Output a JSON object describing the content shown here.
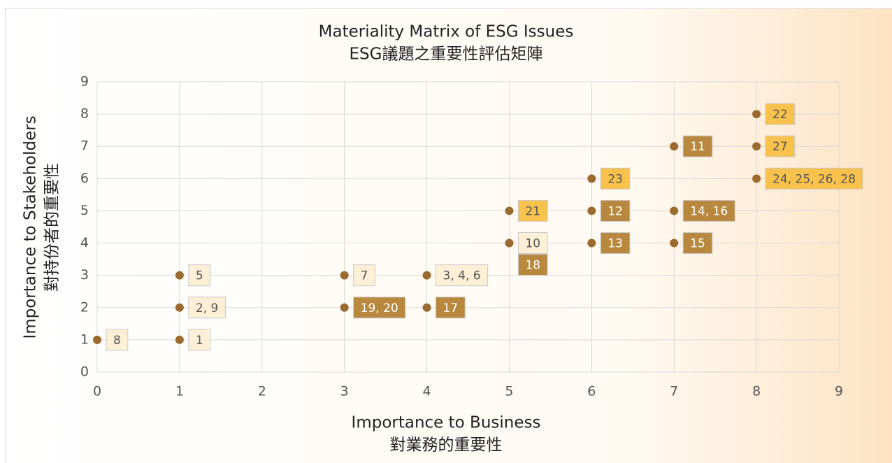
{
  "chart_data": {
    "type": "scatter",
    "title": "Materiality Matrix of ESG Issues",
    "subtitle": "ESG議題之重要性評估矩陣",
    "xlabel": [
      "Importance to Business",
      "對業務的重要性"
    ],
    "ylabel": [
      "Importance to Stakeholders",
      "對持份者的重要性"
    ],
    "x": [
      0,
      1,
      1,
      1,
      3,
      3,
      4,
      4,
      5,
      5,
      6,
      6,
      6,
      7,
      7,
      7,
      8,
      8,
      8
    ],
    "y": [
      1,
      1,
      2,
      3,
      2,
      3,
      2,
      3,
      4,
      5,
      4,
      5,
      6,
      4,
      5,
      7,
      6,
      7,
      8
    ],
    "labels": [
      [
        "8"
      ],
      [
        "1"
      ],
      [
        "2, 9"
      ],
      [
        "5"
      ],
      [
        "19, 20"
      ],
      [
        "7"
      ],
      [
        "17"
      ],
      [
        "3, 4, 6"
      ],
      [
        "10",
        "18"
      ],
      [
        "21"
      ],
      [
        "13"
      ],
      [
        "12"
      ],
      [
        "23"
      ],
      [
        "15"
      ],
      [
        "14, 16"
      ],
      [
        "11"
      ],
      [
        "24, 25, 26, 28"
      ],
      [
        "27"
      ],
      [
        "22"
      ]
    ],
    "label_fills": [
      [
        "#fdf0d6"
      ],
      [
        "#fdf0d6"
      ],
      [
        "#fdf0d6"
      ],
      [
        "#fdf0d6"
      ],
      [
        "#b8883e"
      ],
      [
        "#fdf0d6"
      ],
      [
        "#b8883e"
      ],
      [
        "#fdf0d6"
      ],
      [
        "#fdf0d6",
        "#b8883e"
      ],
      [
        "#f9c24d"
      ],
      [
        "#b8883e"
      ],
      [
        "#b8883e"
      ],
      [
        "#f9c24d"
      ],
      [
        "#b8883e"
      ],
      [
        "#b8883e"
      ],
      [
        "#b8883e"
      ],
      [
        "#f9c24d"
      ],
      [
        "#f9c24d"
      ],
      [
        "#f9c24d"
      ]
    ],
    "color": "#9a6a2e",
    "xlim": [
      0,
      9
    ],
    "ylim": [
      0,
      9
    ],
    "xticks": [
      0,
      1,
      2,
      3,
      4,
      5,
      6,
      7,
      8,
      9
    ],
    "yticks": [
      0,
      1,
      2,
      3,
      4,
      5,
      6,
      7,
      8,
      9
    ],
    "grid": true
  }
}
